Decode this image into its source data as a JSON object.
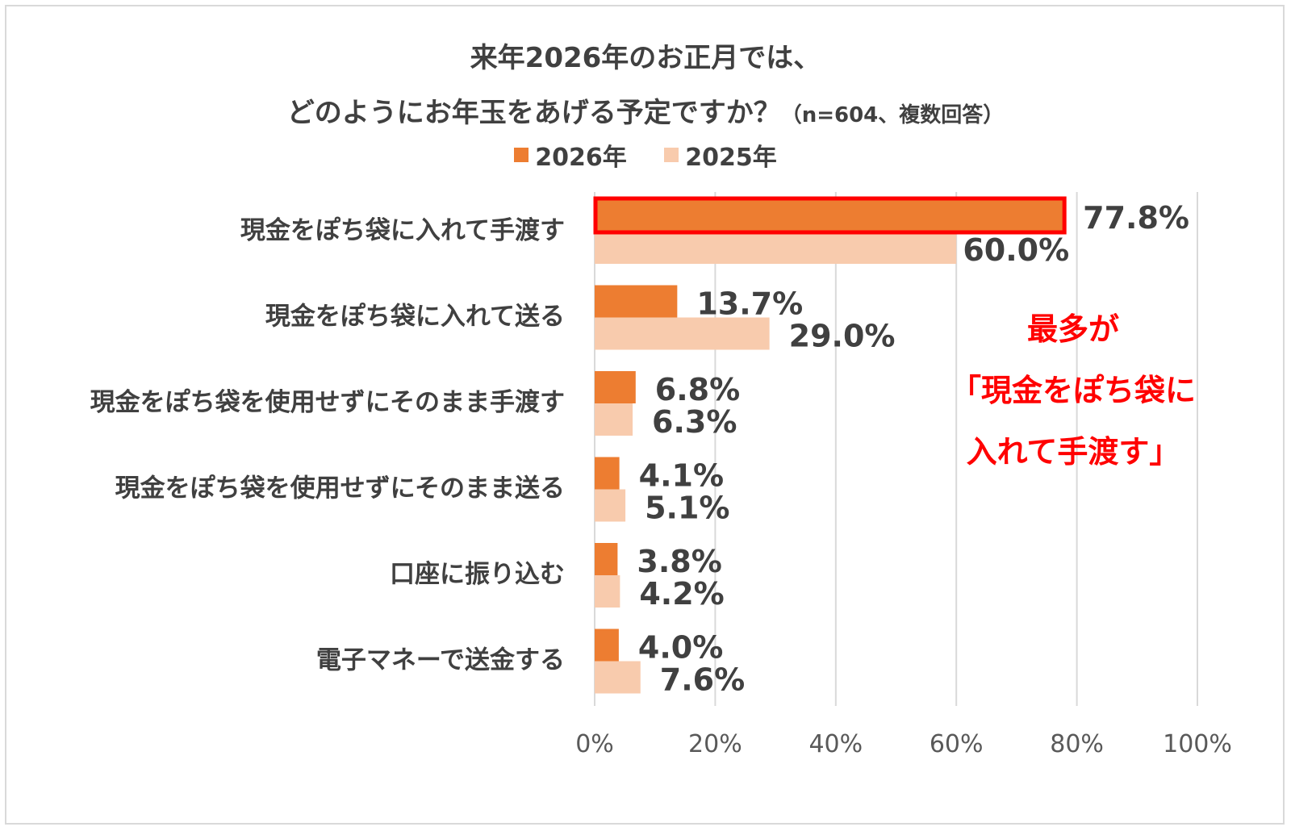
{
  "chart_data": {
    "type": "bar",
    "orientation": "horizontal",
    "title_line1": "来年2026年のお正月では、",
    "title_line2": "どのようにお年玉をあげる予定ですか？",
    "title_note": "（n=604、複数回答）",
    "categories": [
      "現金をぽち袋に入れて手渡す",
      "現金をぽち袋に入れて送る",
      "現金をぽち袋を使用せずにそのまま手渡す",
      "現金をぽち袋を使用せずにそのまま送る",
      "口座に振り込む",
      "電子マネーで送金する"
    ],
    "series": [
      {
        "name": "2026年",
        "color": "#ed7d31",
        "values": [
          77.8,
          13.7,
          6.8,
          4.1,
          3.8,
          4.0
        ],
        "labels": [
          "77.8%",
          "13.7%",
          "6.8%",
          "4.1%",
          "3.8%",
          "4.0%"
        ]
      },
      {
        "name": "2025年",
        "color": "#f8cbad",
        "values": [
          60.0,
          29.0,
          6.3,
          5.1,
          4.2,
          7.6
        ],
        "labels": [
          "60.0%",
          "29.0%",
          "6.3%",
          "5.1%",
          "4.2%",
          "7.6%"
        ]
      }
    ],
    "xlim": [
      0,
      100
    ],
    "xticks": [
      0,
      20,
      40,
      60,
      80,
      100
    ],
    "xtick_labels": [
      "0%",
      "20%",
      "40%",
      "60%",
      "80%",
      "100%"
    ],
    "grid": true,
    "legend_position": "top-center",
    "highlight": {
      "series_index": 0,
      "category_index": 0,
      "color": "#ff0000"
    },
    "annotation_lines": [
      "最多が",
      "「現金をぽち袋に",
      "入れて手渡す」"
    ],
    "annotation_color": "#ff0000"
  }
}
